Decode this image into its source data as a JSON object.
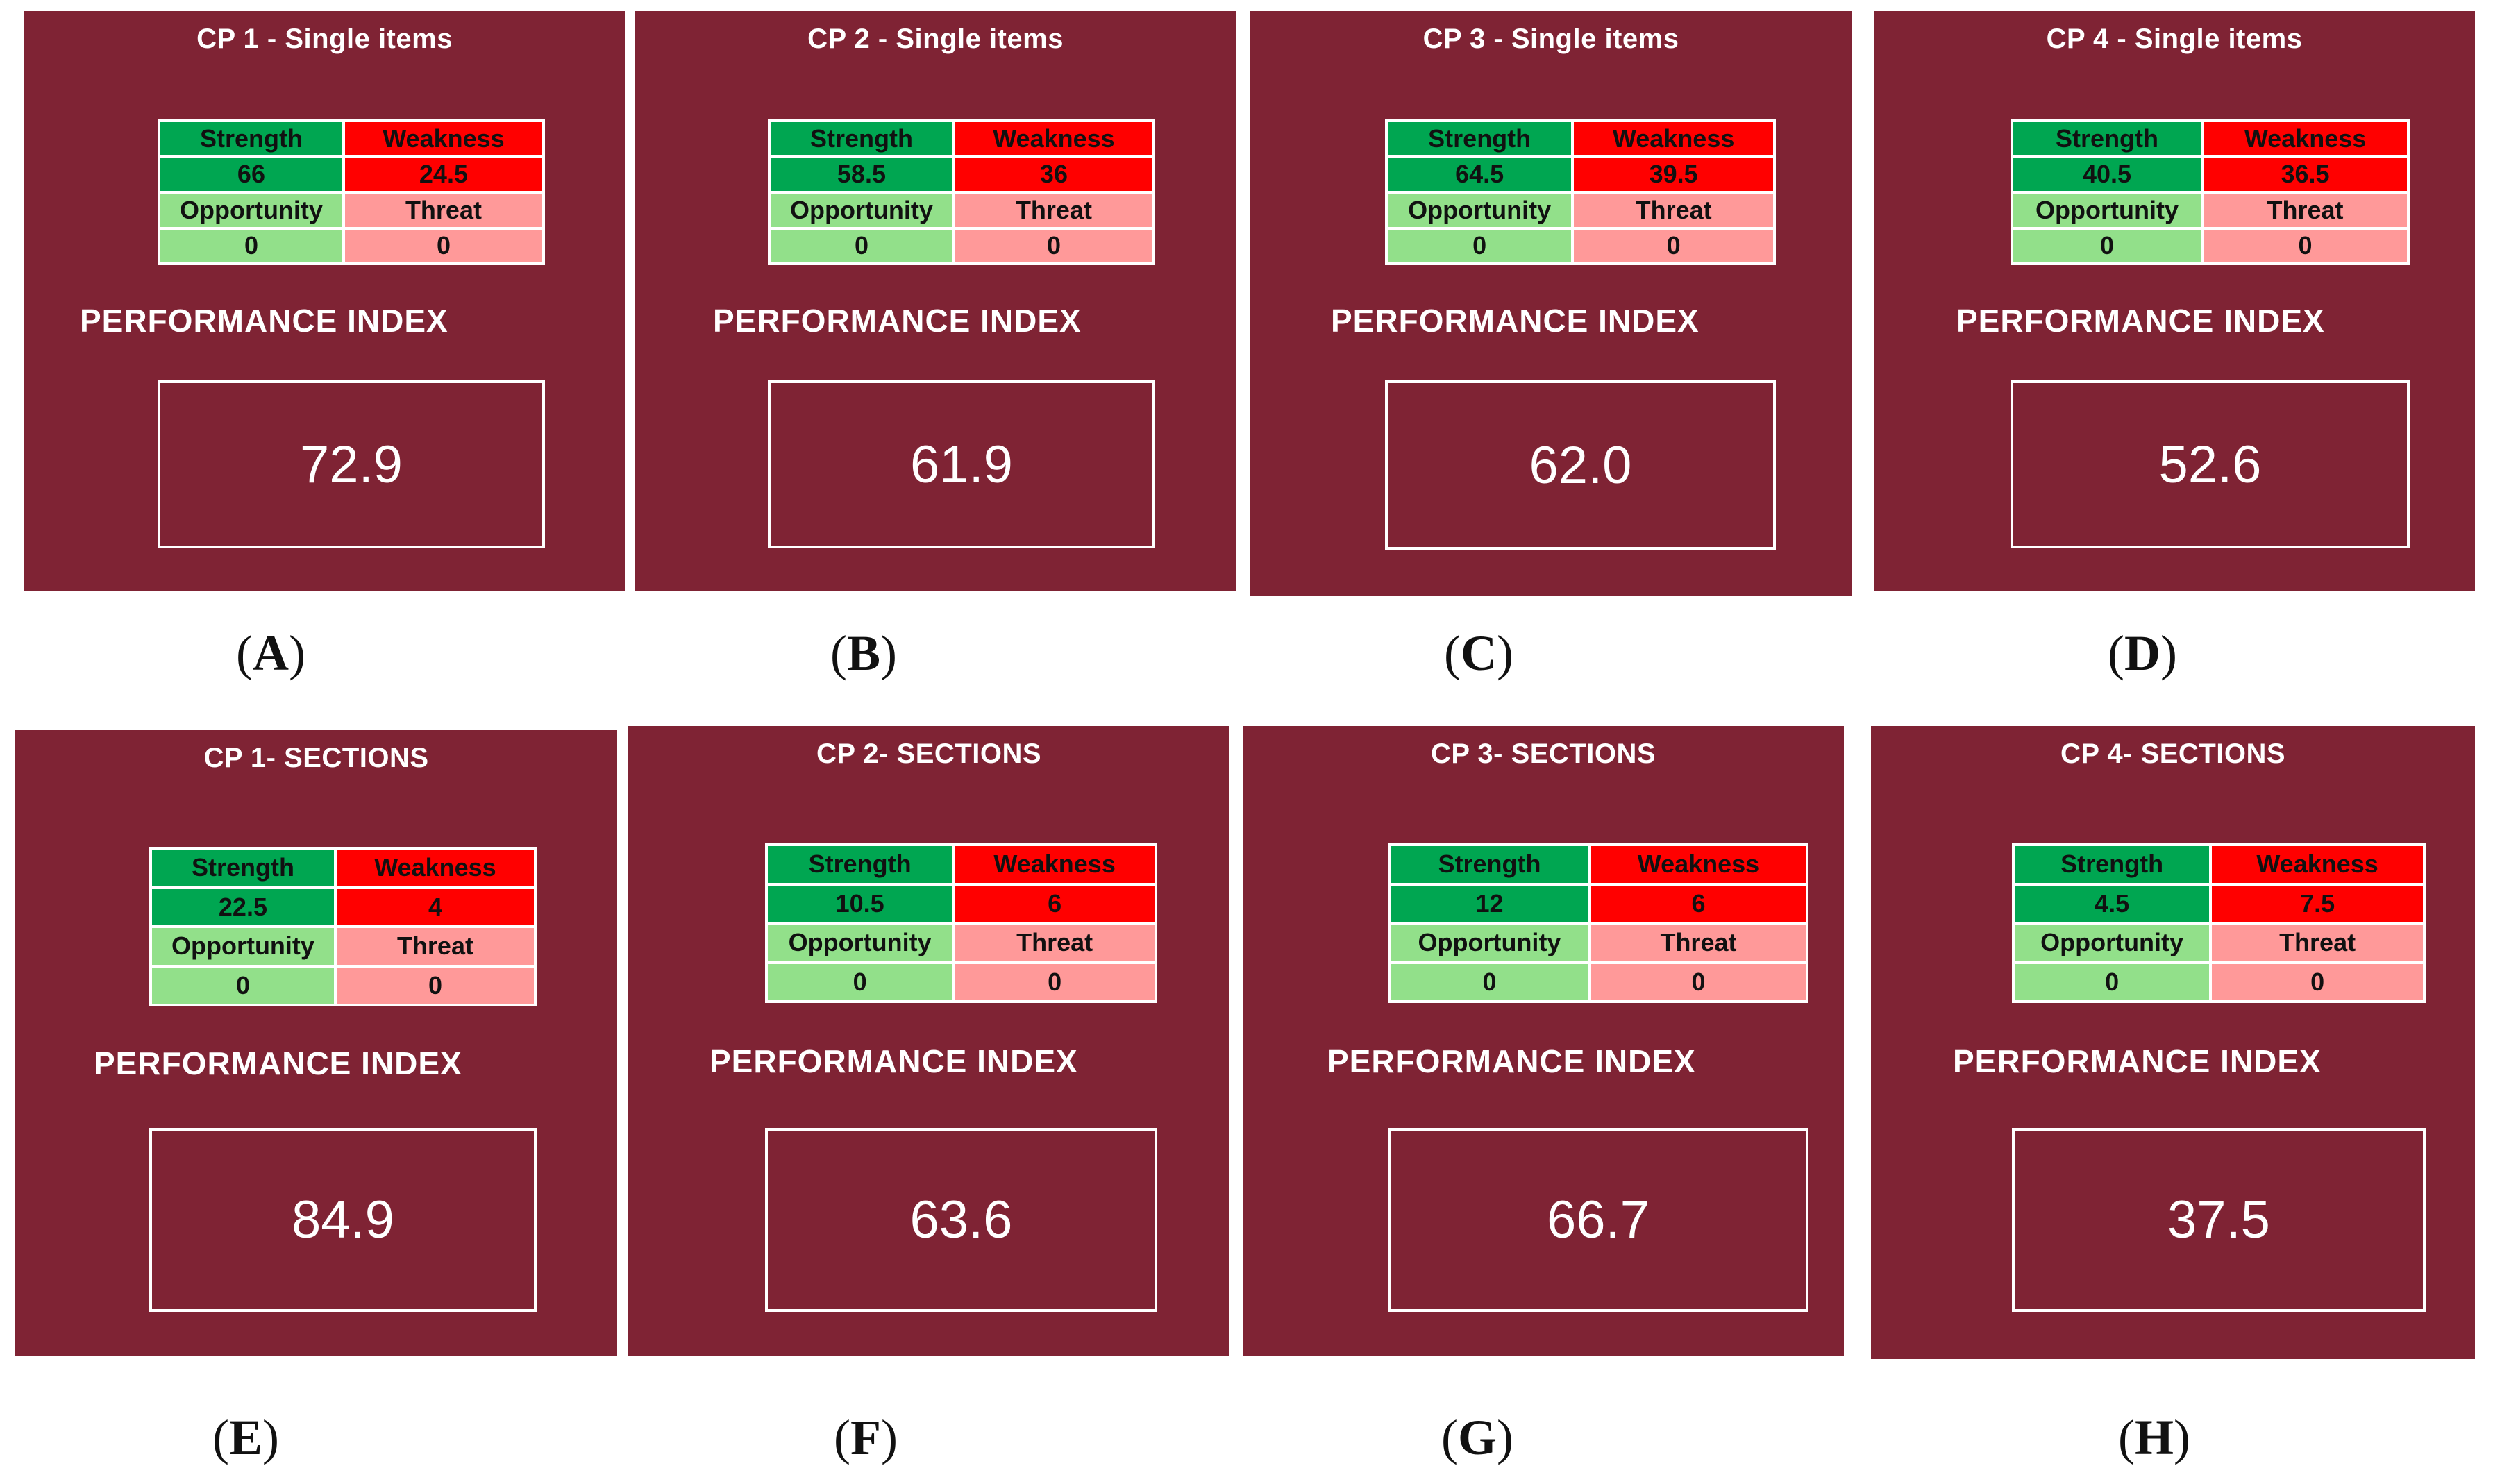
{
  "colors": {
    "panel_background": "#7f2334",
    "strength": "#00a651",
    "weakness": "#ff0000",
    "opportunity": "#92e08a",
    "threat": "#ff9999"
  },
  "labels": {
    "strength": "Strength",
    "weakness": "Weakness",
    "opportunity": "Opportunity",
    "threat": "Threat",
    "performance_index": "PERFORMANCE INDEX"
  },
  "panels": [
    {
      "title": "CP 1 - Single items",
      "strength": "66",
      "weakness": "24.5",
      "opportunity": "0",
      "threat": "0",
      "performance_index": "72.9",
      "caption_letter": "A"
    },
    {
      "title": "CP 2 - Single items",
      "strength": "58.5",
      "weakness": "36",
      "opportunity": "0",
      "threat": "0",
      "performance_index": "61.9",
      "caption_letter": "B"
    },
    {
      "title": "CP 3 - Single items",
      "strength": "64.5",
      "weakness": "39.5",
      "opportunity": "0",
      "threat": "0",
      "performance_index": "62.0",
      "caption_letter": "C"
    },
    {
      "title": "CP 4 - Single items",
      "strength": "40.5",
      "weakness": "36.5",
      "opportunity": "0",
      "threat": "0",
      "performance_index": "52.6",
      "caption_letter": "D"
    },
    {
      "title": "CP 1- SECTIONS",
      "strength": "22.5",
      "weakness": "4",
      "opportunity": "0",
      "threat": "0",
      "performance_index": "84.9",
      "caption_letter": "E"
    },
    {
      "title": "CP 2- SECTIONS",
      "strength": "10.5",
      "weakness": "6",
      "opportunity": "0",
      "threat": "0",
      "performance_index": "63.6",
      "caption_letter": "F"
    },
    {
      "title": "CP 3- SECTIONS",
      "strength": "12",
      "weakness": "6",
      "opportunity": "0",
      "threat": "0",
      "performance_index": "66.7",
      "caption_letter": "G"
    },
    {
      "title": "CP 4- SECTIONS",
      "strength": "4.5",
      "weakness": "7.5",
      "opportunity": "0",
      "threat": "0",
      "performance_index": "37.5",
      "caption_letter": "H"
    }
  ]
}
